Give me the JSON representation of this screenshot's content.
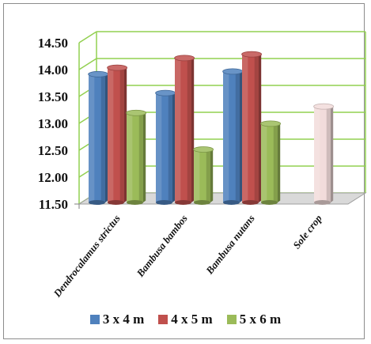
{
  "chart_data": {
    "type": "bar",
    "three_d": true,
    "categories": [
      "Dendrocalamus strictus",
      "Bambusa bambos",
      "Bambusa nutans",
      "Sole crop"
    ],
    "series": [
      {
        "name": "3 x 4 m",
        "color": "#4f81bd",
        "values": [
          13.9,
          13.55,
          13.95,
          null
        ]
      },
      {
        "name": "4 x 5 m",
        "color": "#c0504d",
        "values": [
          14.02,
          14.2,
          14.27,
          null
        ]
      },
      {
        "name": "5 x 6 m",
        "color": "#9bbb59",
        "values": [
          13.18,
          12.5,
          12.98,
          null
        ]
      }
    ],
    "extra_bars": [
      {
        "category": "Sole crop",
        "value": 13.3,
        "color": "#f2dcdb"
      }
    ],
    "y_ticks": [
      "14.50",
      "14.00",
      "13.50",
      "13.00",
      "12.50",
      "12.00",
      "11.50"
    ],
    "ylim": [
      11.5,
      14.5
    ],
    "grid": true,
    "grid_color": "#92d050",
    "legend_position": "bottom",
    "title": "",
    "xlabel": "",
    "ylabel": ""
  }
}
